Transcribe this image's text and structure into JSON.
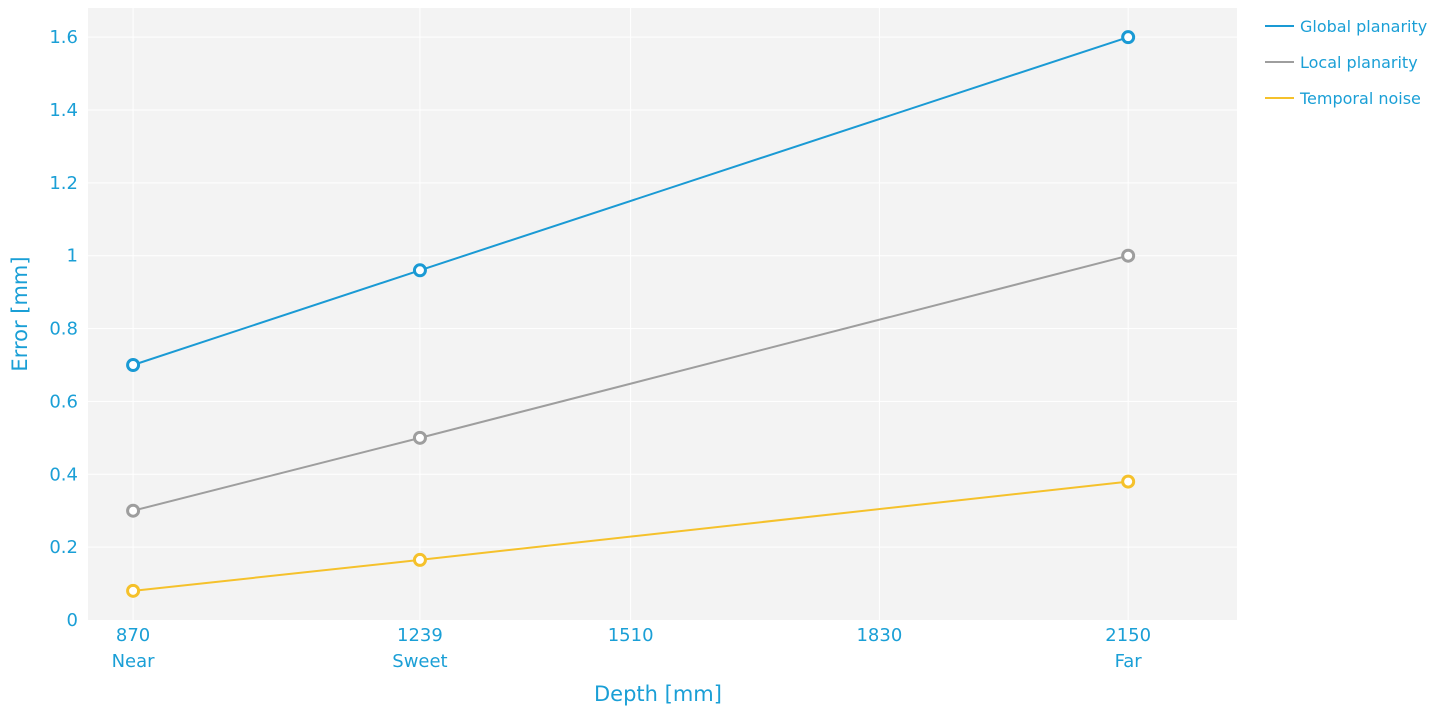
{
  "chart_data": {
    "type": "line",
    "x": [
      870,
      1239,
      2150
    ],
    "x_tick_values": [
      870,
      1239,
      1510,
      1830,
      2150
    ],
    "x_tick_labels": [
      "870",
      "1239",
      "1510",
      "1830",
      "2150"
    ],
    "x_sub_labels": [
      {
        "x": 870,
        "label": "Near"
      },
      {
        "x": 1239,
        "label": "Sweet"
      },
      {
        "x": 2150,
        "label": "Far"
      }
    ],
    "xlim": [
      812,
      2290
    ],
    "ylim": [
      0,
      1.68
    ],
    "y_tick_values": [
      0,
      0.2,
      0.4,
      0.6,
      0.8,
      1,
      1.2,
      1.4,
      1.6
    ],
    "y_tick_labels": [
      "0",
      "0.2",
      "0.4",
      "0.6",
      "0.8",
      "1",
      "1.2",
      "1.4",
      "1.6"
    ],
    "xlabel": "Depth [mm]",
    "ylabel": "Error [mm]",
    "grid": true,
    "legend_position": "top-right",
    "series": [
      {
        "name": "Global planarity",
        "color": "#1a9ad4",
        "values": [
          0.7,
          0.96,
          1.6
        ]
      },
      {
        "name": "Local planarity",
        "color": "#9e9e9e",
        "values": [
          0.3,
          0.5,
          1.0
        ]
      },
      {
        "name": "Temporal noise",
        "color": "#f5c12b",
        "values": [
          0.08,
          0.165,
          0.38
        ]
      }
    ]
  }
}
